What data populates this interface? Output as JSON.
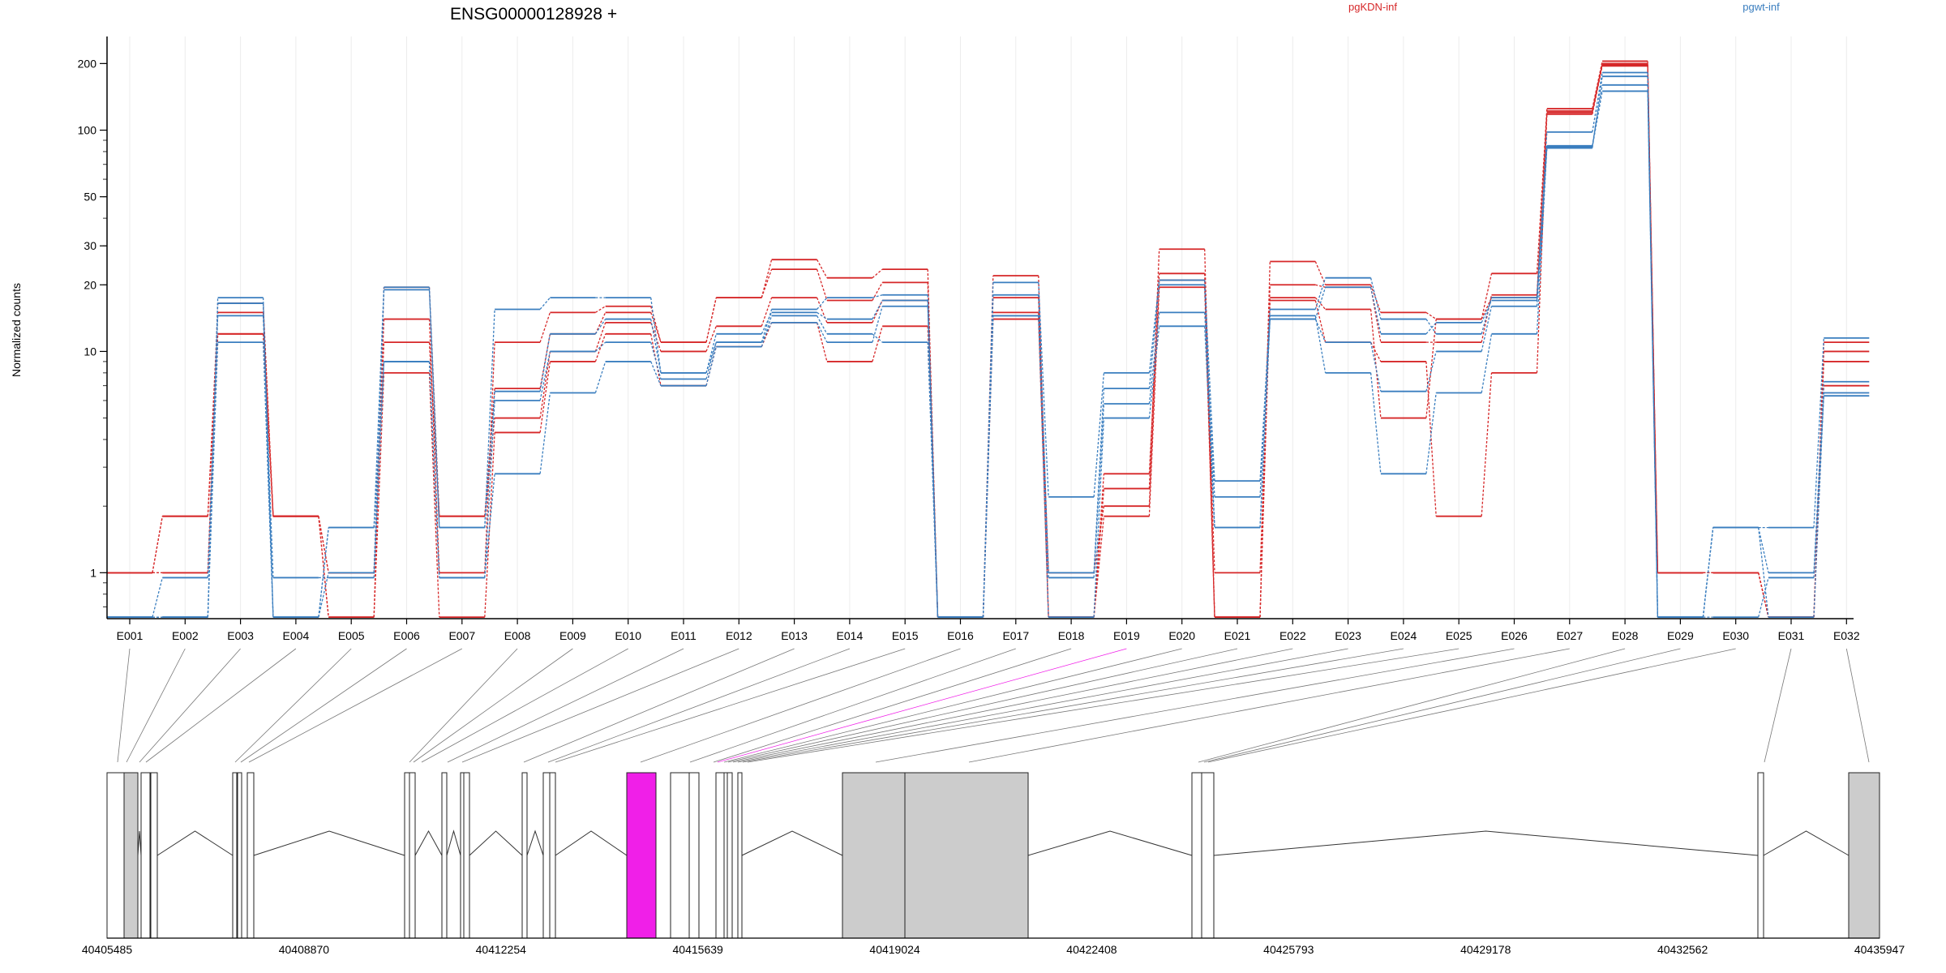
{
  "chart_data": {
    "type": "line",
    "title": "ENSG00000128928 +",
    "ylabel": "Normalized counts",
    "yscale": "log",
    "ylim": [
      0.62,
      265
    ],
    "yticks": [
      {
        "v": 1,
        "label": "1"
      },
      {
        "v": 10,
        "label": "10"
      },
      {
        "v": 20,
        "label": "20"
      },
      {
        "v": 30,
        "label": "30"
      },
      {
        "v": 50,
        "label": "50"
      },
      {
        "v": 100,
        "label": "100"
      },
      {
        "v": 200,
        "label": "200"
      }
    ],
    "grid": "vertical",
    "legend": {
      "placement": "top-right",
      "entries": [
        {
          "name": "pgKDN-inf",
          "color": "#d62728"
        },
        {
          "name": "pgwt-inf",
          "color": "#3a7ebf"
        }
      ]
    },
    "categories": [
      "E001",
      "E002",
      "E003",
      "E004",
      "E005",
      "E006",
      "E007",
      "E008",
      "E009",
      "E010",
      "E011",
      "E012",
      "E013",
      "E014",
      "E015",
      "E016",
      "E017",
      "E018",
      "E019",
      "E020",
      "E021",
      "E022",
      "E023",
      "E024",
      "E025",
      "E026",
      "E027",
      "E028",
      "E029",
      "E030",
      "E031",
      "E032"
    ],
    "series": [
      {
        "group": "pgKDN-inf",
        "color": "#d62728",
        "values": [
          1.0,
          1.8,
          12,
          1.8,
          0.63,
          19.5,
          1.8,
          6.8,
          12,
          15,
          11,
          17.5,
          26,
          21.5,
          23.5,
          0.63,
          22,
          0.63,
          2.4,
          29,
          0.63,
          25.5,
          20,
          15,
          14,
          22.5,
          125,
          205,
          1.0,
          1.0,
          0.63,
          11
        ]
      },
      {
        "group": "pgKDN-inf",
        "color": "#d62728",
        "values": [
          1.0,
          1.0,
          16.5,
          1.8,
          1.0,
          14,
          1.0,
          11,
          15,
          16,
          11,
          17.5,
          23.5,
          17,
          20.5,
          0.63,
          17.5,
          1.0,
          2.0,
          22.5,
          0.63,
          20,
          19.5,
          11,
          11,
          18,
          120,
          198,
          1.0,
          1.0,
          0.63,
          10
        ]
      },
      {
        "group": "pgKDN-inf",
        "color": "#d62728",
        "values": [
          1.0,
          1.8,
          15,
          1.8,
          1.0,
          11,
          1.8,
          5.0,
          10,
          13.5,
          10,
          13,
          17.5,
          13.5,
          17,
          0.63,
          15,
          0.63,
          2.8,
          21,
          1.0,
          17.5,
          15.5,
          5.0,
          14,
          17.5,
          122,
          200,
          1.0,
          1.0,
          0.63,
          9
        ]
      },
      {
        "group": "pgKDN-inf",
        "color": "#d62728",
        "values": [
          1.0,
          1.0,
          12,
          1.8,
          0.63,
          8,
          0.63,
          4.3,
          9,
          12,
          7,
          10.5,
          13.5,
          9,
          13,
          0.63,
          14,
          0.63,
          1.8,
          19.5,
          0.63,
          17,
          11,
          9,
          1.8,
          8,
          118,
          195,
          1.0,
          1.0,
          0.63,
          7
        ]
      },
      {
        "group": "pgwt-inf",
        "color": "#3a7ebf",
        "values": [
          0.63,
          0.63,
          17.5,
          0.63,
          1.6,
          19.5,
          1.6,
          15.5,
          17.5,
          17.5,
          8,
          11,
          15.5,
          17.5,
          18,
          0.63,
          20.5,
          2.2,
          8,
          21,
          2.6,
          15.5,
          21.5,
          14,
          12,
          17.5,
          98,
          182,
          0.63,
          1.6,
          1.6,
          11.5
        ]
      },
      {
        "group": "pgwt-inf",
        "color": "#3a7ebf",
        "values": [
          0.63,
          0.63,
          16.5,
          0.63,
          1.0,
          19,
          1.6,
          6.6,
          12,
          14,
          8,
          12,
          15,
          14,
          17,
          0.63,
          18,
          1.0,
          6.8,
          20,
          1.6,
          14,
          19.5,
          12,
          13.5,
          17,
          83,
          175,
          0.63,
          1.6,
          1.0,
          7.3
        ]
      },
      {
        "group": "pgwt-inf",
        "color": "#3a7ebf",
        "values": [
          0.63,
          0.95,
          14.5,
          0.95,
          0.95,
          9,
          0.95,
          6,
          10,
          11,
          7.5,
          11,
          13.5,
          11,
          16,
          0.63,
          14.5,
          0.95,
          5.8,
          15,
          2.2,
          14,
          11,
          6.6,
          10,
          16,
          85,
          160,
          0.63,
          0.63,
          0.95,
          6.3
        ]
      },
      {
        "group": "pgwt-inf",
        "color": "#3a7ebf",
        "values": [
          0.63,
          0.63,
          11,
          0.63,
          1.6,
          9,
          0.95,
          2.8,
          6.5,
          9,
          7,
          10.5,
          14.5,
          12,
          11,
          0.63,
          14.5,
          0.63,
          5,
          13,
          1.6,
          14.5,
          8,
          2.8,
          6.5,
          12,
          84,
          150,
          0.63,
          1.6,
          0.63,
          6.5
        ]
      }
    ],
    "gene_model": {
      "coordinate_ticks": [
        "40405485",
        "40408870",
        "40412254",
        "40415639",
        "40419024",
        "40422408",
        "40425793",
        "40429178",
        "40432562",
        "40435947"
      ],
      "highlighted_exon": "E019",
      "highlight_color": "#f01fe8",
      "exon_fill": "#cccccc"
    }
  }
}
